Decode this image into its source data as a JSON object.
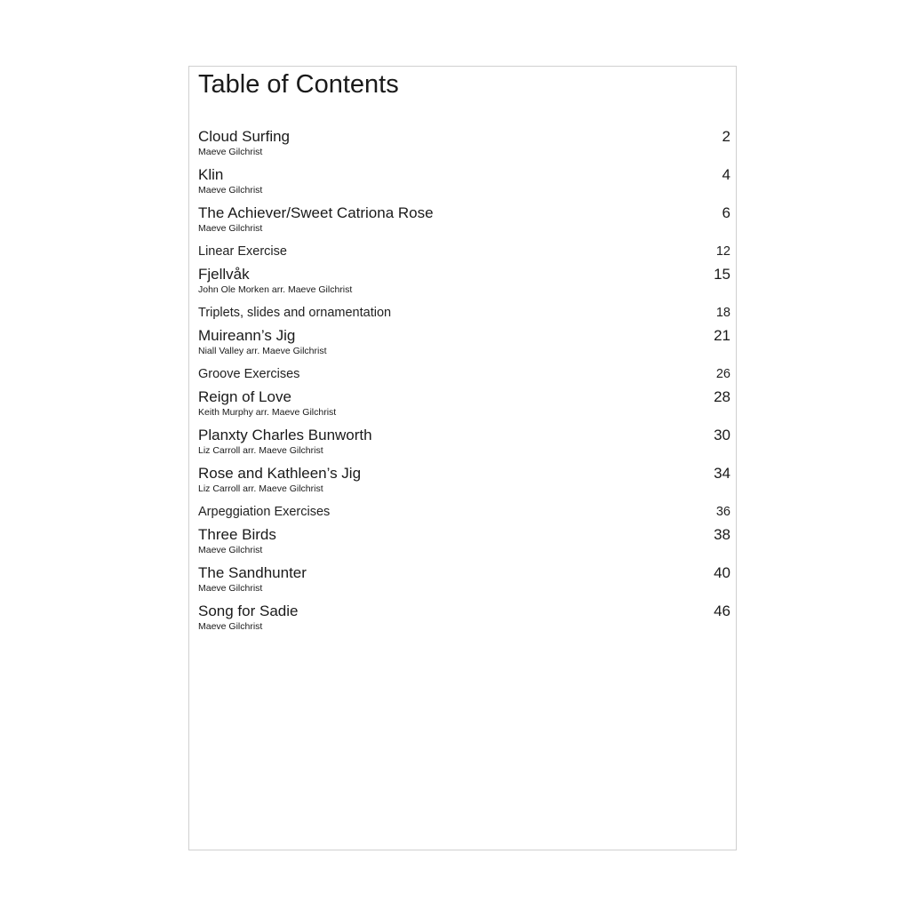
{
  "title": "Table of Contents",
  "entries": [
    {
      "title": "Cloud Surfing",
      "author": "Maeve Gilchrist",
      "page": "2"
    },
    {
      "title": "Klin",
      "author": "Maeve Gilchrist",
      "page": "4"
    },
    {
      "title": "The Achiever/Sweet Catriona Rose",
      "author": "Maeve Gilchrist",
      "page": "6"
    },
    {
      "title": "Linear Exercise",
      "author": "",
      "page": "12"
    },
    {
      "title": "Fjellvåk",
      "author": "John Ole Morken arr. Maeve Gilchrist",
      "page": "15"
    },
    {
      "title": "Triplets, slides and ornamentation",
      "author": "",
      "page": "18"
    },
    {
      "title": "Muireann’s Jig",
      "author": "Niall Valley arr. Maeve Gilchrist",
      "page": "21"
    },
    {
      "title": "Groove Exercises",
      "author": "",
      "page": "26"
    },
    {
      "title": "Reign of Love",
      "author": "Keith Murphy arr. Maeve Gilchrist",
      "page": "28"
    },
    {
      "title": "Planxty Charles Bunworth",
      "author": "Liz Carroll arr. Maeve Gilchrist",
      "page": "30"
    },
    {
      "title": "Rose and Kathleen’s Jig",
      "author": "Liz Carroll arr. Maeve Gilchrist",
      "page": "34"
    },
    {
      "title": "Arpeggiation Exercises",
      "author": "",
      "page": "36"
    },
    {
      "title": "Three Birds",
      "author": "Maeve Gilchrist",
      "page": "38"
    },
    {
      "title": "The Sandhunter",
      "author": "Maeve Gilchrist",
      "page": "40"
    },
    {
      "title": "Song for Sadie",
      "author": "Maeve Gilchrist",
      "page": "46"
    }
  ]
}
